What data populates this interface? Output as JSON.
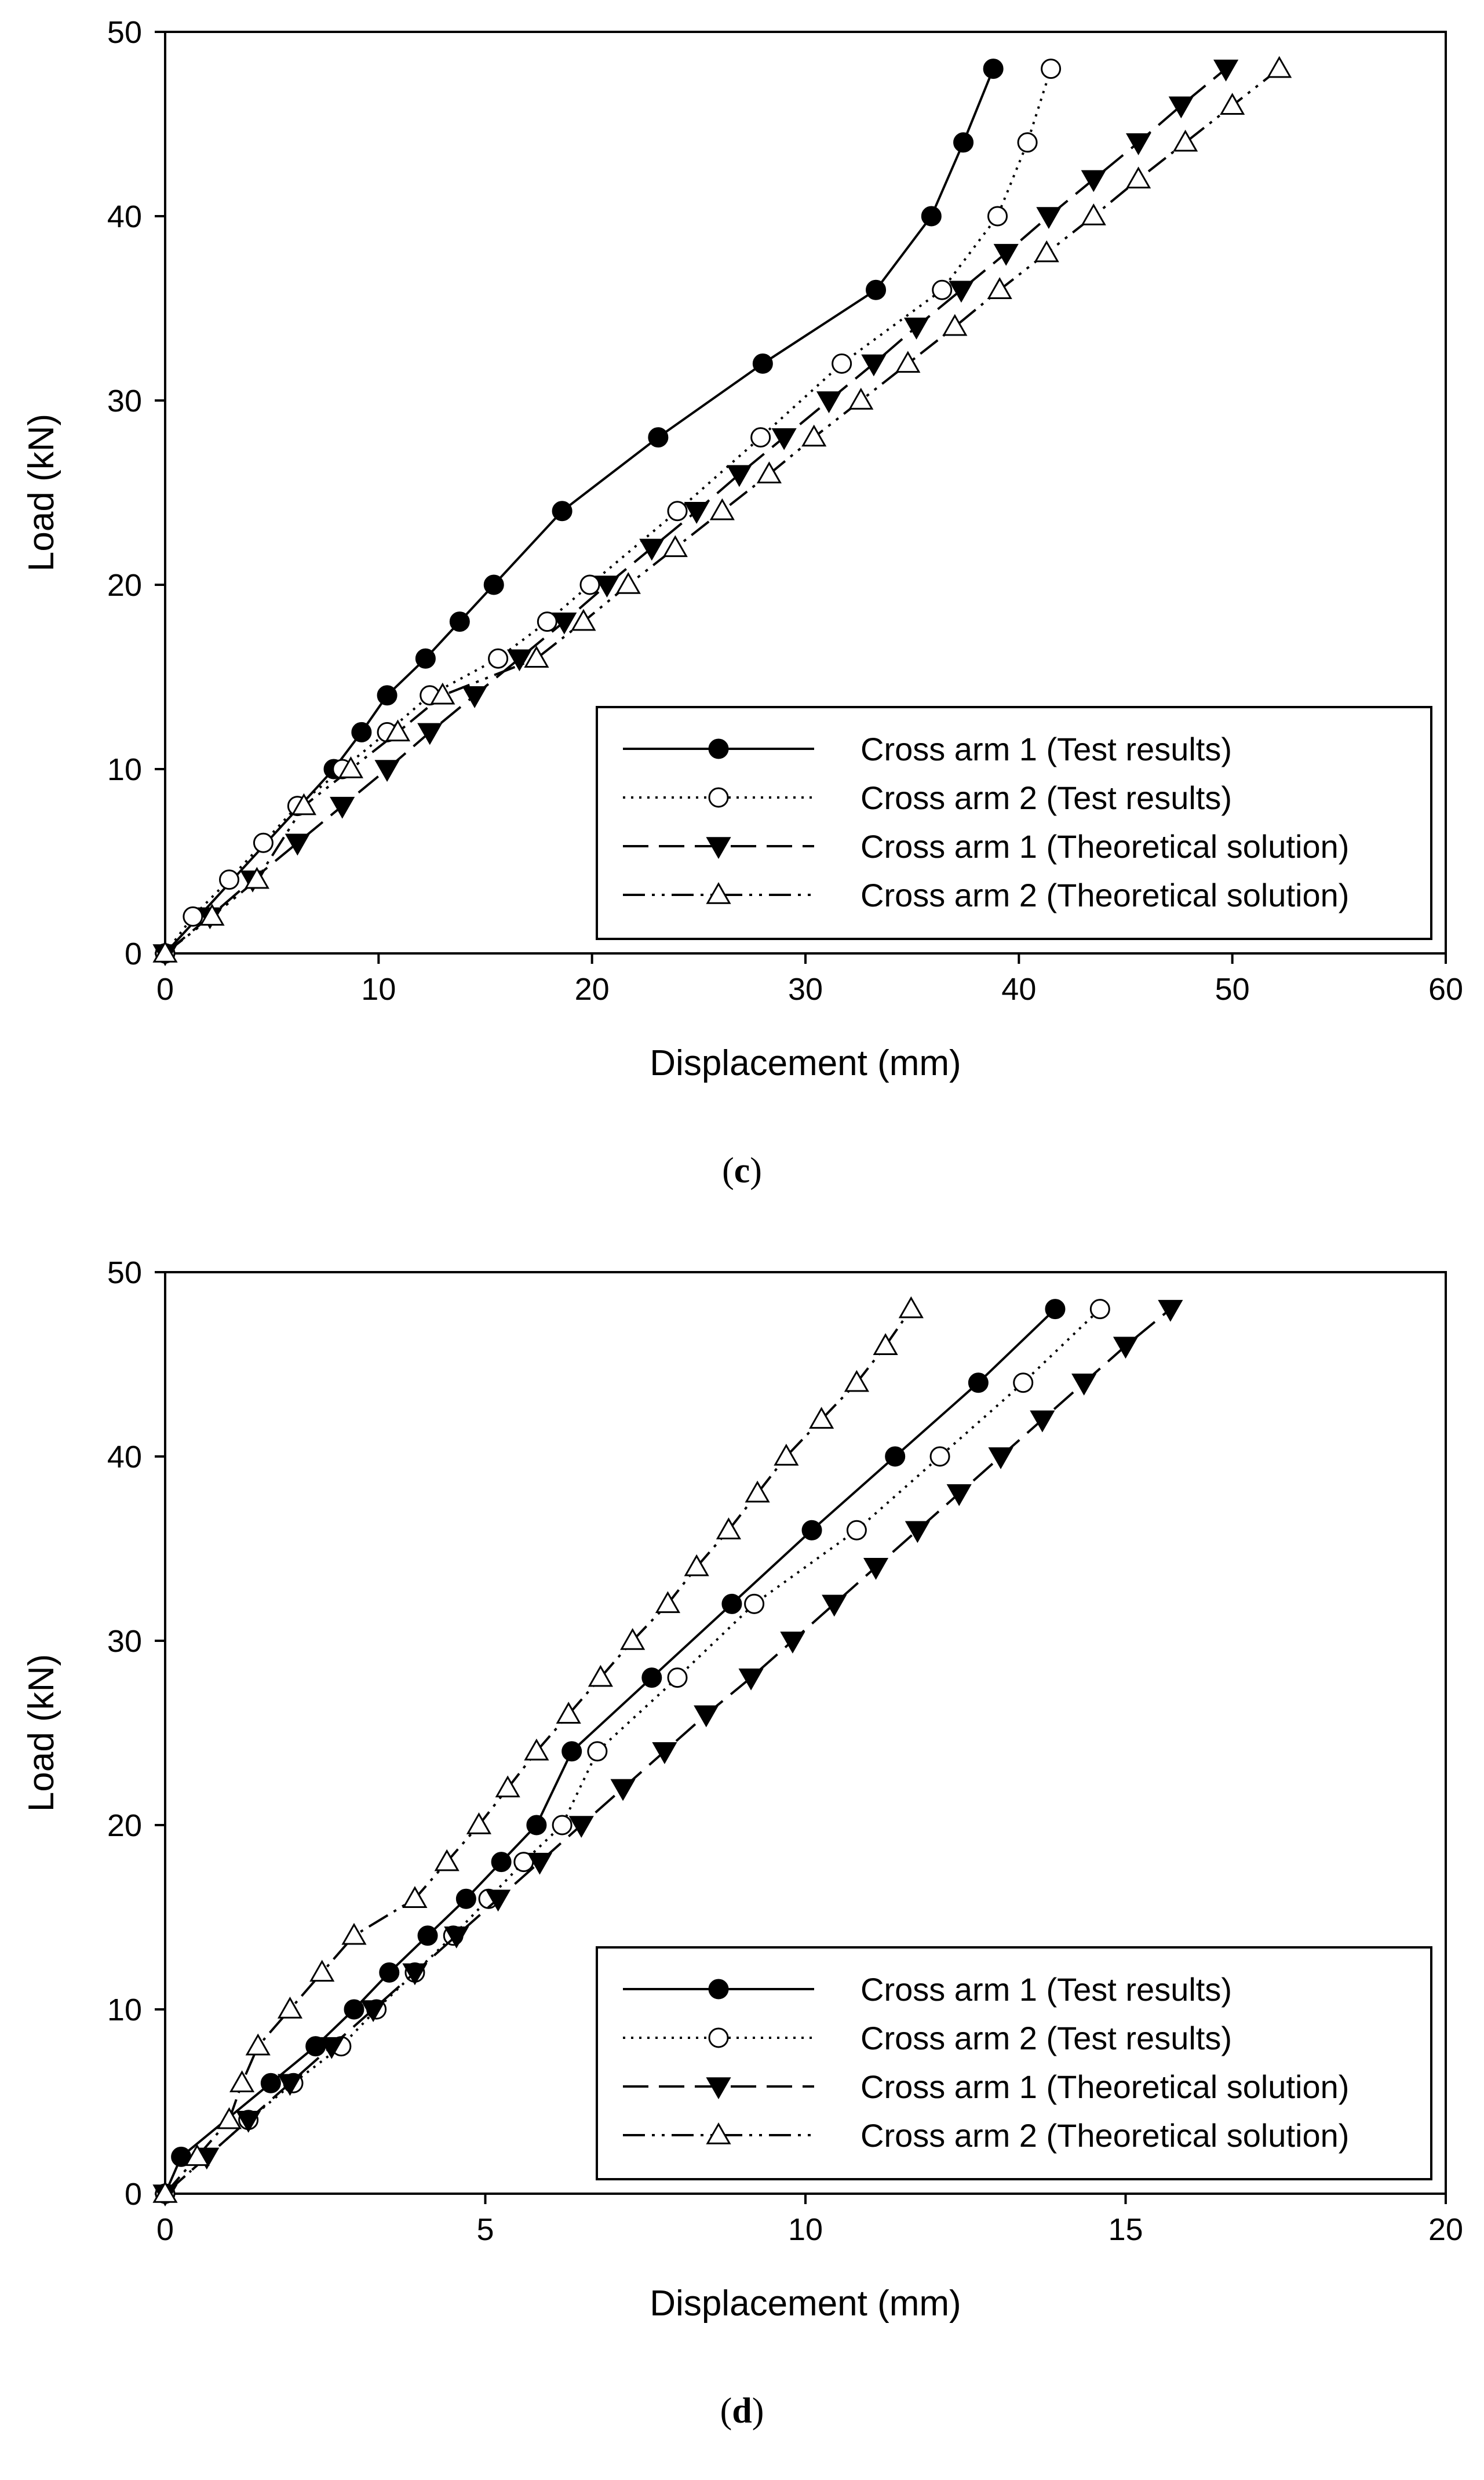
{
  "chart_data": [
    {
      "type": "line",
      "panel_label": "c",
      "xlabel": "Displacement (mm)",
      "ylabel": "Load (kN)",
      "xlim": [
        0,
        60
      ],
      "ylim": [
        0,
        50
      ],
      "xticks": [
        0,
        10,
        20,
        30,
        40,
        50,
        60
      ],
      "yticks": [
        0,
        10,
        20,
        30,
        40,
        50
      ],
      "grid": false,
      "legend_position": "bottom-right",
      "series": [
        {
          "name": "Cross arm 1 (Test results)",
          "line": "solid",
          "marker": "filled-circle",
          "x": [
            0,
            7.9,
            9.2,
            10.4,
            12.2,
            13.8,
            15.4,
            18.6,
            23.1,
            28.0,
            33.3,
            35.9,
            37.4,
            38.8
          ],
          "y": [
            0,
            10,
            12,
            14,
            16,
            18,
            20,
            24,
            28,
            32,
            36,
            40,
            44,
            48
          ]
        },
        {
          "name": "Cross arm 2 (Test results)",
          "line": "dotted",
          "marker": "open-circle",
          "x": [
            0,
            1.3,
            3.0,
            4.6,
            6.2,
            8.3,
            10.4,
            12.4,
            15.6,
            17.9,
            19.9,
            24.0,
            27.9,
            31.7,
            36.4,
            39.0,
            40.4,
            41.5
          ],
          "y": [
            0,
            2,
            4,
            6,
            8,
            10,
            12,
            14,
            16,
            18,
            20,
            24,
            28,
            32,
            36,
            40,
            44,
            48
          ]
        },
        {
          "name": "Cross arm 1 (Theoretical solution)",
          "line": "long-dash",
          "marker": "filled-triangle-down",
          "x": [
            0,
            2.1,
            4.1,
            6.2,
            8.3,
            10.4,
            12.4,
            14.5,
            16.6,
            18.7,
            20.7,
            22.8,
            24.9,
            26.9,
            29.0,
            31.1,
            33.2,
            35.2,
            37.3,
            39.4,
            41.4,
            43.5,
            45.6,
            47.6,
            49.7
          ],
          "y": [
            0,
            2,
            4,
            6,
            8,
            10,
            12,
            14,
            16,
            18,
            20,
            22,
            24,
            26,
            28,
            30,
            32,
            34,
            36,
            38,
            40,
            42,
            44,
            46,
            48
          ]
        },
        {
          "name": "Cross arm 2 (Theoretical solution)",
          "line": "dash-dot-dot",
          "marker": "open-triangle-up",
          "x": [
            0,
            2.2,
            4.3,
            6.5,
            8.7,
            10.9,
            13.0,
            17.4,
            19.6,
            21.7,
            23.9,
            26.1,
            28.3,
            30.4,
            32.6,
            34.8,
            37.0,
            39.1,
            41.3,
            43.5,
            45.6,
            47.8,
            50.0,
            52.2
          ],
          "y": [
            0,
            2,
            4,
            8,
            10,
            12,
            14,
            16,
            18,
            20,
            22,
            24,
            26,
            28,
            30,
            32,
            34,
            36,
            38,
            40,
            42,
            44,
            46,
            48
          ]
        }
      ]
    },
    {
      "type": "line",
      "panel_label": "d",
      "xlabel": "Displacement (mm)",
      "ylabel": "Load (kN)",
      "xlim": [
        0,
        20
      ],
      "ylim": [
        0,
        50
      ],
      "xticks": [
        0,
        5,
        10,
        15,
        20
      ],
      "yticks": [
        0,
        10,
        20,
        30,
        40,
        50
      ],
      "grid": false,
      "legend_position": "bottom-right",
      "series": [
        {
          "name": "Cross arm 1 (Test results)",
          "line": "solid",
          "marker": "filled-circle",
          "x": [
            0,
            0.25,
            1.65,
            2.35,
            2.95,
            3.5,
            4.1,
            4.7,
            5.25,
            5.8,
            6.35,
            7.6,
            8.85,
            10.1,
            11.4,
            12.7,
            13.9
          ],
          "y": [
            0,
            2,
            6,
            8,
            10,
            12,
            14,
            16,
            18,
            20,
            24,
            28,
            32,
            36,
            40,
            44,
            48
          ]
        },
        {
          "name": "Cross arm 2 (Test results)",
          "line": "dotted",
          "marker": "open-circle",
          "x": [
            0,
            1.3,
            2.0,
            2.75,
            3.3,
            3.9,
            4.5,
            5.05,
            5.6,
            6.2,
            6.75,
            8.0,
            9.2,
            10.8,
            12.1,
            13.4,
            14.6
          ],
          "y": [
            0,
            4,
            6,
            8,
            10,
            12,
            14,
            16,
            18,
            20,
            24,
            28,
            32,
            36,
            40,
            44,
            48
          ]
        },
        {
          "name": "Cross arm 1 (Theoretical solution)",
          "line": "long-dash",
          "marker": "filled-triangle-down",
          "x": [
            0,
            0.65,
            1.3,
            1.95,
            2.6,
            3.25,
            3.9,
            4.55,
            5.2,
            5.85,
            6.5,
            7.15,
            7.8,
            8.45,
            9.15,
            9.8,
            10.45,
            11.1,
            11.75,
            12.4,
            13.05,
            13.7,
            14.35,
            15.0,
            15.7
          ],
          "y": [
            0,
            2,
            4,
            6,
            8,
            10,
            12,
            14,
            16,
            18,
            20,
            22,
            24,
            26,
            28,
            30,
            32,
            34,
            36,
            38,
            40,
            42,
            44,
            46,
            48
          ]
        },
        {
          "name": "Cross arm 2 (Theoretical solution)",
          "line": "dash-dot-dot",
          "marker": "open-triangle-up",
          "x": [
            0,
            0.5,
            1.0,
            1.2,
            1.45,
            1.95,
            2.45,
            2.95,
            3.9,
            4.4,
            4.9,
            5.35,
            5.8,
            6.3,
            6.8,
            7.3,
            7.85,
            8.3,
            8.8,
            9.25,
            9.7,
            10.25,
            10.8,
            11.25,
            11.65
          ],
          "y": [
            0,
            2,
            4,
            6,
            8,
            10,
            12,
            14,
            16,
            18,
            20,
            22,
            24,
            26,
            28,
            30,
            32,
            34,
            36,
            38,
            40,
            42,
            44,
            46,
            48
          ]
        }
      ]
    }
  ]
}
